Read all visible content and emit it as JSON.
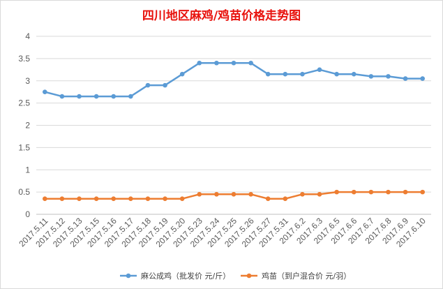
{
  "chart_data": {
    "type": "line",
    "title": "四川地区麻鸡/鸡苗价格走势图",
    "xlabel": "",
    "ylabel": "",
    "categories": [
      "2017.5.11",
      "2017.5.12",
      "2017.5.13",
      "2017.5.15",
      "2017.5.16",
      "2017.5.17",
      "2017.5.18",
      "2017.5.19",
      "2017.5.20",
      "2017.5.23",
      "2017.5.24",
      "2017.5.25",
      "2017.5.26",
      "2017.5.27",
      "2017.5.31",
      "2017.6.2",
      "2017.6.3",
      "2017.6.5",
      "2017.6.6",
      "2017.6.7",
      "2017.6.8",
      "2017.6.9",
      "2017.6.10"
    ],
    "ylim": [
      0,
      4
    ],
    "yticks": [
      "0",
      "0.5",
      "1",
      "1.5",
      "2",
      "2.5",
      "3",
      "3.5",
      "4"
    ],
    "grid": true,
    "legend_position": "bottom",
    "series": [
      {
        "name": "麻公成鸡（批发价 元/斤）",
        "color": "#5b9bd5",
        "values": [
          2.75,
          2.65,
          2.65,
          2.65,
          2.65,
          2.65,
          2.9,
          2.9,
          3.15,
          3.4,
          3.4,
          3.4,
          3.4,
          3.15,
          3.15,
          3.15,
          3.25,
          3.15,
          3.15,
          3.1,
          3.1,
          3.05,
          3.05
        ]
      },
      {
        "name": "鸡苗（到户混合价 元/羽）",
        "color": "#ed7d31",
        "values": [
          0.35,
          0.35,
          0.35,
          0.35,
          0.35,
          0.35,
          0.35,
          0.35,
          0.35,
          0.45,
          0.45,
          0.45,
          0.45,
          0.35,
          0.35,
          0.45,
          0.45,
          0.5,
          0.5,
          0.5,
          0.5,
          0.5,
          0.5
        ]
      }
    ]
  }
}
